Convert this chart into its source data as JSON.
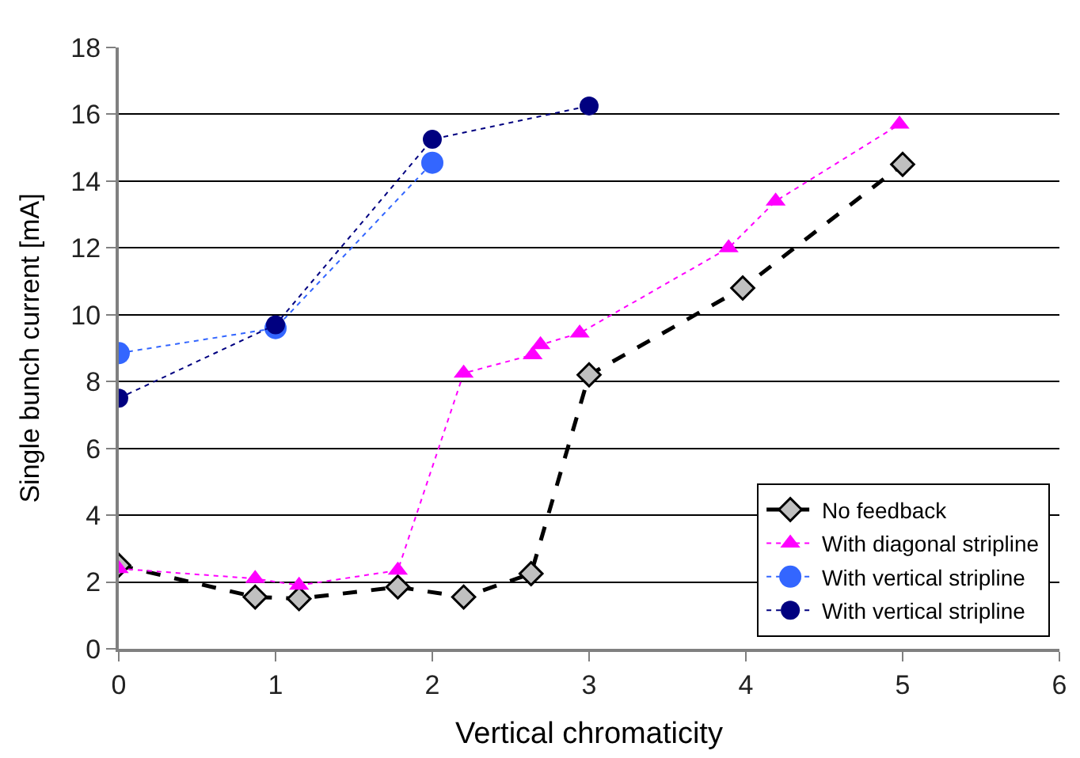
{
  "chart_data": {
    "type": "line",
    "xlabel": "Vertical chromaticity",
    "ylabel": "Single bunch current [mA]",
    "xlim": [
      0,
      6
    ],
    "xticks": [
      0,
      1,
      2,
      3,
      4,
      5,
      6
    ],
    "ylim": [
      0,
      18
    ],
    "yticks": [
      0,
      2,
      4,
      6,
      8,
      10,
      12,
      14,
      16,
      18
    ],
    "grid": "y",
    "legend": "bottom right",
    "series": [
      {
        "name": "No feedback",
        "color": "#000000",
        "marker": "diamond",
        "line_style": "dashed",
        "x": [
          0,
          0.87,
          1.15,
          1.78,
          2.2,
          2.63,
          3.0,
          3.98,
          5.0
        ],
        "values": [
          2.5,
          1.55,
          1.5,
          1.85,
          1.55,
          2.25,
          8.2,
          10.8,
          14.5
        ]
      },
      {
        "name": "With diagonal stripline",
        "color": "#ff00ff",
        "marker": "triangle",
        "line_style": "dotted",
        "x": [
          0,
          0.87,
          1.15,
          1.78,
          2.2,
          2.64,
          2.69,
          2.94,
          3.89,
          4.19,
          4.98
        ],
        "values": [
          2.4,
          2.1,
          1.9,
          2.35,
          8.25,
          8.8,
          9.1,
          9.45,
          12.0,
          13.4,
          15.7
        ]
      },
      {
        "name": "With vertical stripline",
        "color": "#3366ff",
        "marker": "circle",
        "line_style": "dotted",
        "x": [
          0,
          1,
          2
        ],
        "values": [
          8.85,
          9.6,
          14.55
        ]
      },
      {
        "name": "With vertical stripline",
        "color": "#000080",
        "marker": "circle",
        "line_style": "dotted",
        "x": [
          0,
          1,
          2,
          3
        ],
        "values": [
          7.5,
          9.7,
          15.25,
          16.25
        ]
      }
    ]
  }
}
